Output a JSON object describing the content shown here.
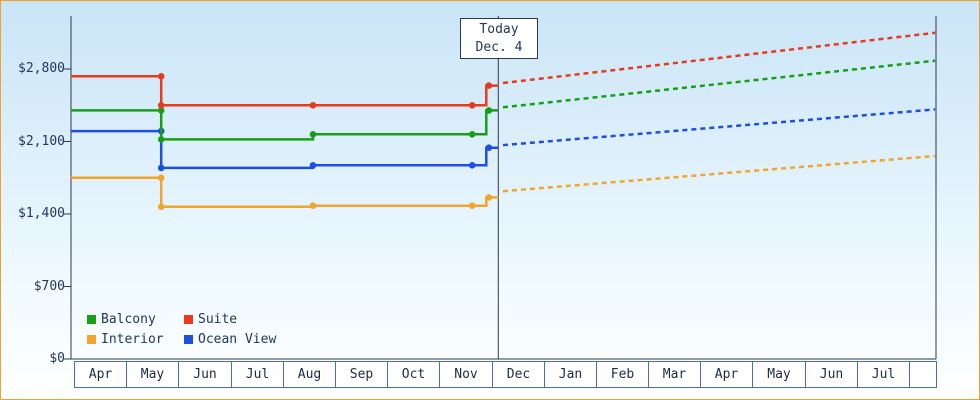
{
  "today": {
    "line1": "Today",
    "line2": "Dec. 4"
  },
  "chart_data": {
    "type": "line",
    "title": "",
    "x_unit": "month-index (0 = left edge of first Apr cell, 1 cell = 1 month)",
    "x_tick_labels": [
      "Apr",
      "May",
      "Jun",
      "Jul",
      "Aug",
      "Sep",
      "Oct",
      "Nov",
      "Dec",
      "Jan",
      "Feb",
      "Mar",
      "Apr",
      "May",
      "Jun",
      "Jul"
    ],
    "y_ticks": [
      0,
      700,
      1400,
      2100,
      2800
    ],
    "y_tick_labels": [
      "$0",
      "$700",
      "$1,400",
      "$2,100",
      "$2,800"
    ],
    "y_axis_range": [
      0,
      3300
    ],
    "grid": false,
    "today_marker": {
      "line1": "Today",
      "line2": "Dec. 4",
      "x_month": 8.13
    },
    "legend": [
      "Balcony",
      "Suite",
      "Interior",
      "Ocean View"
    ],
    "legend_position": "bottom-left",
    "series": [
      {
        "name": "Interior",
        "color": "#f2a52b",
        "history": [
          [
            -0.06,
            1750
          ],
          [
            1.67,
            1750
          ],
          [
            1.67,
            1470
          ],
          [
            4.58,
            1470
          ],
          [
            4.58,
            1480
          ],
          [
            7.9,
            1480
          ],
          [
            7.9,
            1560
          ],
          [
            8.13,
            1560
          ]
        ],
        "markers": [
          [
            1.67,
            1750
          ],
          [
            1.67,
            1470
          ],
          [
            4.58,
            1480
          ],
          [
            7.63,
            1480
          ],
          [
            7.95,
            1560
          ]
        ],
        "forecast": [
          [
            8.22,
            1620
          ],
          [
            16.5,
            1960
          ]
        ]
      },
      {
        "name": "Ocean View",
        "color": "#1d4fe1",
        "history": [
          [
            -0.06,
            2200
          ],
          [
            1.67,
            2200
          ],
          [
            1.67,
            1845
          ],
          [
            4.58,
            1845
          ],
          [
            4.58,
            1870
          ],
          [
            7.9,
            1870
          ],
          [
            7.9,
            2040
          ],
          [
            8.13,
            2040
          ]
        ],
        "markers": [
          [
            1.67,
            2200
          ],
          [
            1.67,
            1845
          ],
          [
            4.58,
            1870
          ],
          [
            7.63,
            1870
          ],
          [
            7.95,
            2040
          ]
        ],
        "forecast": [
          [
            8.22,
            2065
          ],
          [
            16.5,
            2410
          ]
        ]
      },
      {
        "name": "Balcony",
        "color": "#16a016",
        "history": [
          [
            -0.06,
            2400
          ],
          [
            1.67,
            2400
          ],
          [
            1.67,
            2120
          ],
          [
            4.58,
            2120
          ],
          [
            4.58,
            2170
          ],
          [
            7.9,
            2170
          ],
          [
            7.9,
            2400
          ],
          [
            8.13,
            2400
          ]
        ],
        "markers": [
          [
            1.67,
            2400
          ],
          [
            1.67,
            2120
          ],
          [
            4.58,
            2170
          ],
          [
            7.63,
            2170
          ],
          [
            7.95,
            2400
          ]
        ],
        "forecast": [
          [
            8.22,
            2430
          ],
          [
            16.5,
            2880
          ]
        ]
      },
      {
        "name": "Suite",
        "color": "#e83a1e",
        "history": [
          [
            -0.06,
            2730
          ],
          [
            1.67,
            2730
          ],
          [
            1.67,
            2450
          ],
          [
            7.9,
            2450
          ],
          [
            7.9,
            2640
          ],
          [
            8.13,
            2640
          ]
        ],
        "markers": [
          [
            1.67,
            2730
          ],
          [
            1.67,
            2450
          ],
          [
            4.58,
            2450
          ],
          [
            7.63,
            2450
          ],
          [
            7.95,
            2640
          ]
        ],
        "forecast": [
          [
            8.22,
            2665
          ],
          [
            16.5,
            3150
          ]
        ]
      }
    ]
  }
}
